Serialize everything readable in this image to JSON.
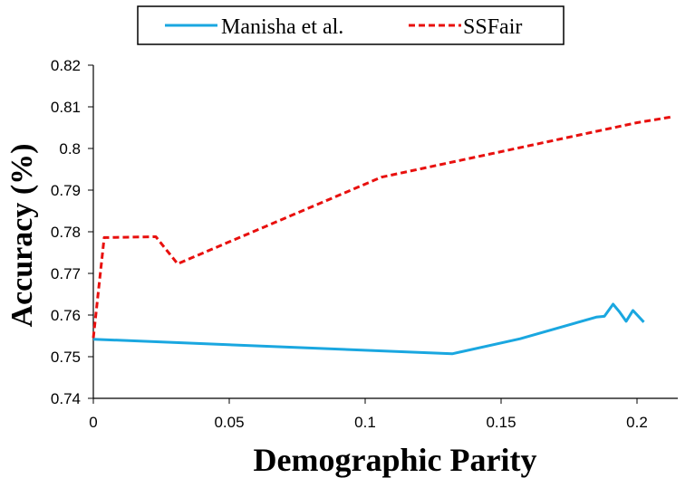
{
  "chart_data": {
    "type": "line",
    "xlabel": "Demographic Parity",
    "ylabel": "Accuracy (%)",
    "xlim": [
      0,
      0.215
    ],
    "ylim": [
      0.74,
      0.82
    ],
    "x_ticks": [
      0,
      0.05,
      0.1,
      0.15,
      0.2
    ],
    "x_tick_labels": [
      "0",
      "0.05",
      "0.1",
      "0.15",
      "0.2"
    ],
    "y_ticks": [
      0.74,
      0.75,
      0.76,
      0.77,
      0.78,
      0.79,
      0.8,
      0.81,
      0.82
    ],
    "y_tick_labels": [
      "0.74",
      "0.75",
      "0.76",
      "0.77",
      "0.78",
      "0.79",
      "0.8",
      "0.81",
      "0.82"
    ],
    "grid": false,
    "legend_position": "top",
    "series": [
      {
        "name": "Manisha et al.",
        "color": "#1aa7e0",
        "dash": "solid",
        "points": [
          [
            0.0,
            0.7542
          ],
          [
            0.132,
            0.7507
          ],
          [
            0.157,
            0.7543
          ],
          [
            0.185,
            0.7595
          ],
          [
            0.188,
            0.7597
          ],
          [
            0.1912,
            0.7626
          ],
          [
            0.1935,
            0.7608
          ],
          [
            0.196,
            0.7585
          ],
          [
            0.1985,
            0.7611
          ],
          [
            0.2025,
            0.7583
          ]
        ]
      },
      {
        "name": "SSFair",
        "color": "#e8100e",
        "dash": "dashed",
        "points": [
          [
            0.0,
            0.7545
          ],
          [
            0.004,
            0.7786
          ],
          [
            0.023,
            0.7788
          ],
          [
            0.031,
            0.7723
          ],
          [
            0.106,
            0.7931
          ],
          [
            0.2,
            0.8062
          ],
          [
            0.213,
            0.8076
          ]
        ]
      }
    ]
  }
}
